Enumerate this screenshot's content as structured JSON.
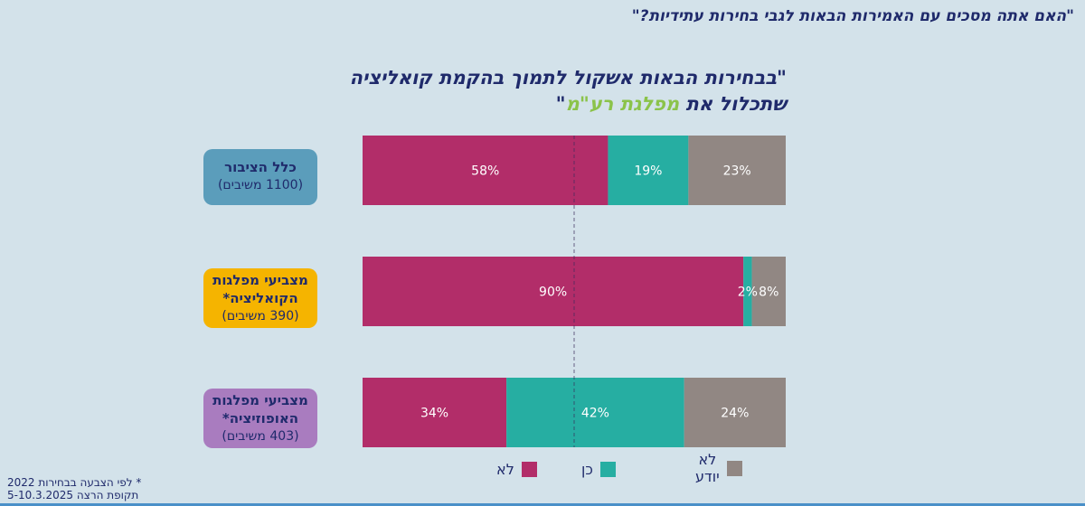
{
  "question": "\"האם אתה מסכים עם האמירות הבאות לגבי בחירות עתידיות?\"",
  "statement": {
    "line1": "\"בבחירות הבאות אשקול לתמוך בהקמת קואליציה",
    "line2_prefix": "שתכלול את ",
    "line2_highlight": "מפלגת רע\"מ",
    "line2_suffix": "\""
  },
  "groups": [
    {
      "name": "כלל הציבור",
      "count": "(1100 משיבים)",
      "color": "#5b9dbb"
    },
    {
      "name": "מצביעי מפלגות הקואליציה*",
      "count": "(390 משיבים)",
      "color": "#f5b400"
    },
    {
      "name": "מצביעי מפלגות האופוזיציה*",
      "count": "(403 משיבים)",
      "color": "#a97cbf"
    }
  ],
  "chart_data": {
    "type": "bar",
    "orientation": "horizontal-stacked-100",
    "categories": [
      "כלל הציבור",
      "מצביעי מפלגות הקואליציה*",
      "מצביעי מפלגות האופוזיציה*"
    ],
    "series": [
      {
        "name": "לא",
        "color": "#b22d69",
        "values": [
          58,
          90,
          34
        ],
        "labels": [
          "58%",
          "90%",
          "34%"
        ]
      },
      {
        "name": "כן",
        "color": "#26aea2",
        "values": [
          19,
          2,
          42
        ],
        "labels": [
          "19%",
          "2%",
          "42%"
        ]
      },
      {
        "name": "לא יודע",
        "color": "#918783",
        "values": [
          23,
          8,
          24
        ],
        "labels": [
          "23%",
          "8%",
          "24%"
        ]
      }
    ],
    "xlim": [
      0,
      100
    ],
    "reference_line": 50,
    "legend": [
      {
        "name": "לא",
        "color": "#b22d69"
      },
      {
        "name": "כן",
        "color": "#26aea2"
      },
      {
        "name": "לא\nיודע",
        "color": "#918783"
      }
    ]
  },
  "footnote": {
    "line1": "* לפי הצבעה בבחירות 2022",
    "line2": "תקופת הרצה 5-10.3.2025"
  }
}
